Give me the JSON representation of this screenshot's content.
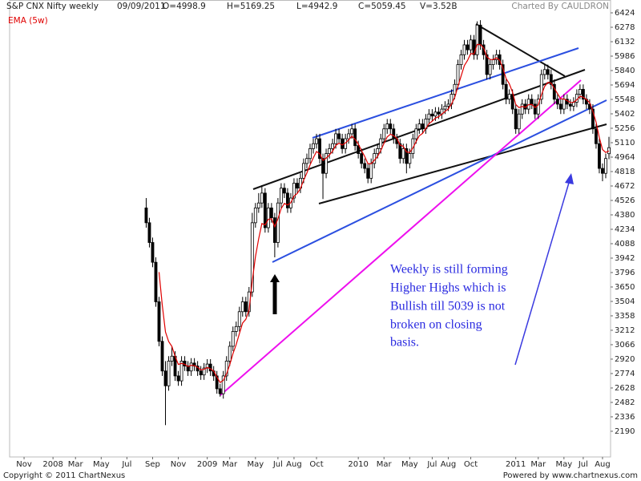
{
  "chart_data": {
    "type": "candlestick",
    "title": "S&P CNX Nifty weekly",
    "date": "09/09/2011",
    "quote": [
      "O=4998.9",
      "H=5169.25",
      "L=4942.9",
      "C=5059.45",
      "V=3.52B"
    ],
    "credit": "Charted By CAULDRON",
    "copyright": "Copyright © 2011 ChartNexus",
    "powered_by": "Powered by www.chartnexus.com",
    "annotation": [
      "Weekly is still forming",
      "Higher Highs which is",
      "Bullish till 5039 is not",
      "broken on closing",
      "basis."
    ],
    "ylim": [
      1930,
      6554
    ],
    "yticks": [
      6424,
      6278,
      6132,
      5986,
      5840,
      5694,
      5548,
      5402,
      5256,
      5110,
      4964,
      4818,
      4672,
      4526,
      4380,
      4234,
      4088,
      3942,
      3796,
      3650,
      3504,
      3358,
      3212,
      3066,
      2920,
      2774,
      2628,
      2482,
      2336,
      2190
    ],
    "categories": [
      null,
      null,
      null,
      null,
      "Nov",
      null,
      null,
      null,
      null,
      null,
      null,
      null,
      null,
      "2008",
      null,
      null,
      null,
      null,
      null,
      null,
      "Mar",
      null,
      null,
      null,
      null,
      null,
      null,
      null,
      "May",
      null,
      null,
      null,
      null,
      null,
      null,
      null,
      "Jul",
      null,
      null,
      null,
      null,
      null,
      null,
      null,
      "Sep",
      null,
      null,
      null,
      null,
      null,
      null,
      null,
      "Nov",
      null,
      null,
      null,
      null,
      null,
      null,
      null,
      null,
      "2009",
      null,
      null,
      null,
      null,
      null,
      null,
      "Mar",
      null,
      null,
      null,
      null,
      null,
      null,
      null,
      "May",
      null,
      null,
      null,
      null,
      null,
      null,
      "Jul",
      null,
      null,
      null,
      null,
      "Aug",
      null,
      null,
      null,
      null,
      null,
      null,
      "Oct",
      null,
      null,
      null,
      null,
      null,
      null,
      null,
      null,
      null,
      null,
      null,
      null,
      "2010",
      null,
      null,
      null,
      null,
      null,
      null,
      null,
      "Mar",
      null,
      null,
      null,
      null,
      null,
      null,
      null,
      "May",
      null,
      null,
      null,
      null,
      null,
      null,
      "Jul",
      null,
      null,
      null,
      null,
      "Aug",
      null,
      null,
      null,
      null,
      null,
      null,
      "Oct",
      null,
      null,
      null,
      null,
      null,
      null,
      null,
      null,
      null,
      null,
      null,
      null,
      null,
      "2011",
      null,
      null,
      null,
      null,
      null,
      null,
      "Mar",
      null,
      null,
      null,
      null,
      null,
      null,
      null,
      "May",
      null,
      null,
      null,
      null,
      null,
      "Jul",
      null,
      null,
      null,
      null,
      null,
      "Aug",
      null,
      null
    ],
    "up_color": "#ffffff",
    "down_color": "#000000",
    "values": [
      null,
      null,
      null,
      null,
      null,
      null,
      null,
      null,
      null,
      null,
      null,
      null,
      null,
      null,
      null,
      null,
      null,
      null,
      null,
      null,
      null,
      null,
      null,
      null,
      null,
      null,
      null,
      null,
      null,
      null,
      null,
      null,
      null,
      null,
      null,
      null,
      null,
      null,
      null,
      null,
      null,
      null,
      [
        4450,
        4550,
        4250,
        4300
      ],
      [
        4300,
        4350,
        4050,
        4100
      ],
      [
        4100,
        4150,
        3850,
        3900
      ],
      [
        3900,
        3950,
        3450,
        3500
      ],
      [
        3500,
        3550,
        3050,
        3100
      ],
      [
        3100,
        3150,
        2750,
        2800
      ],
      [
        2800,
        2900,
        2252,
        2650
      ],
      [
        2650,
        2950,
        2600,
        2900
      ],
      [
        2900,
        3050,
        2850,
        2950
      ],
      [
        2950,
        3000,
        2700,
        2750
      ],
      [
        2750,
        2800,
        2650,
        2700
      ],
      [
        2700,
        2950,
        2650,
        2900
      ],
      [
        2900,
        2950,
        2800,
        2850
      ],
      [
        2850,
        2900,
        2750,
        2800
      ],
      [
        2800,
        2930,
        2750,
        2880
      ],
      [
        2880,
        2930,
        2800,
        2850
      ],
      [
        2850,
        2900,
        2750,
        2800
      ],
      [
        2800,
        2850,
        2710,
        2760
      ],
      [
        2760,
        2880,
        2710,
        2830
      ],
      [
        2830,
        2920,
        2780,
        2870
      ],
      [
        2870,
        2920,
        2750,
        2800
      ],
      [
        2800,
        2850,
        2700,
        2750
      ],
      [
        2750,
        2800,
        2570,
        2620
      ],
      [
        2620,
        2670,
        2540,
        2570
      ],
      [
        2570,
        2800,
        2520,
        2750
      ],
      [
        2750,
        2950,
        2700,
        2900
      ],
      [
        2900,
        3100,
        2850,
        3050
      ],
      [
        3050,
        3250,
        3000,
        3200
      ],
      [
        3200,
        3300,
        3150,
        3250
      ],
      [
        3250,
        3450,
        3200,
        3400
      ],
      [
        3400,
        3550,
        3350,
        3500
      ],
      [
        3500,
        3550,
        3350,
        3400
      ],
      [
        3400,
        3650,
        3350,
        3600
      ],
      [
        3600,
        4400,
        3550,
        4300
      ],
      [
        4300,
        4500,
        4250,
        4450
      ],
      [
        4450,
        4600,
        4400,
        4500
      ],
      [
        4500,
        4680,
        4450,
        4600
      ],
      [
        4600,
        4650,
        4200,
        4250
      ],
      [
        4250,
        4500,
        4200,
        4450
      ],
      [
        4450,
        4500,
        4300,
        4350
      ],
      [
        4350,
        4400,
        3950,
        4100
      ],
      [
        4100,
        4550,
        4050,
        4500
      ],
      [
        4500,
        4700,
        4450,
        4650
      ],
      [
        4650,
        4700,
        4550,
        4600
      ],
      [
        4600,
        4650,
        4400,
        4450
      ],
      [
        4450,
        4600,
        4400,
        4550
      ],
      [
        4550,
        4750,
        4500,
        4700
      ],
      [
        4700,
        4750,
        4600,
        4650
      ],
      [
        4650,
        4800,
        4600,
        4750
      ],
      [
        4750,
        4950,
        4700,
        4900
      ],
      [
        4900,
        5000,
        4850,
        4950
      ],
      [
        4950,
        5100,
        4900,
        5050
      ],
      [
        5050,
        5150,
        5000,
        5100
      ],
      [
        5100,
        5200,
        5050,
        5150
      ],
      [
        5150,
        5200,
        4900,
        4950
      ],
      [
        4950,
        5000,
        4540,
        4800
      ],
      [
        4800,
        5050,
        4750,
        5000
      ],
      [
        5000,
        5100,
        4950,
        5050
      ],
      [
        5050,
        5150,
        5000,
        5100
      ],
      [
        5100,
        5250,
        5050,
        5200
      ],
      [
        5200,
        5250,
        5100,
        5150
      ],
      [
        5150,
        5200,
        5000,
        5050
      ],
      [
        5050,
        5200,
        5000,
        5150
      ],
      [
        5150,
        5250,
        5100,
        5200
      ],
      [
        5200,
        5300,
        5150,
        5250
      ],
      [
        5250,
        5300,
        5030,
        5080
      ],
      [
        5080,
        5130,
        4950,
        5000
      ],
      [
        5000,
        5050,
        4850,
        4900
      ],
      [
        4900,
        4950,
        4800,
        4850
      ],
      [
        4850,
        4900,
        4700,
        4750
      ],
      [
        4750,
        4950,
        4700,
        4900
      ],
      [
        4900,
        5050,
        4850,
        5000
      ],
      [
        5000,
        5100,
        4950,
        5050
      ],
      [
        5050,
        5200,
        5000,
        5150
      ],
      [
        5150,
        5300,
        5100,
        5250
      ],
      [
        5250,
        5350,
        5200,
        5300
      ],
      [
        5300,
        5350,
        5200,
        5250
      ],
      [
        5250,
        5300,
        5100,
        5150
      ],
      [
        5150,
        5200,
        5050,
        5100
      ],
      [
        5100,
        5150,
        4900,
        4950
      ],
      [
        4950,
        5100,
        4900,
        5050
      ],
      [
        5050,
        5100,
        4800,
        4900
      ],
      [
        4900,
        5050,
        4850,
        5000
      ],
      [
        5000,
        5200,
        4950,
        5150
      ],
      [
        5150,
        5300,
        5100,
        5250
      ],
      [
        5250,
        5350,
        5200,
        5300
      ],
      [
        5300,
        5350,
        5200,
        5250
      ],
      [
        5250,
        5400,
        5200,
        5350
      ],
      [
        5350,
        5450,
        5300,
        5400
      ],
      [
        5400,
        5450,
        5330,
        5380
      ],
      [
        5380,
        5470,
        5330,
        5420
      ],
      [
        5420,
        5470,
        5350,
        5400
      ],
      [
        5400,
        5500,
        5350,
        5450
      ],
      [
        5450,
        5530,
        5400,
        5480
      ],
      [
        5480,
        5550,
        5430,
        5500
      ],
      [
        5500,
        5650,
        5450,
        5600
      ],
      [
        5600,
        5750,
        5550,
        5700
      ],
      [
        5700,
        5950,
        5650,
        5900
      ],
      [
        5900,
        6050,
        5850,
        6000
      ],
      [
        6000,
        6150,
        5950,
        6100
      ],
      [
        6100,
        6150,
        6000,
        6050
      ],
      [
        6050,
        6200,
        6000,
        6150
      ],
      [
        6150,
        6200,
        5950,
        6000
      ],
      [
        6000,
        6338,
        5950,
        6300
      ],
      [
        6300,
        6350,
        6050,
        6100
      ],
      [
        6100,
        6150,
        5950,
        6000
      ],
      [
        6000,
        6050,
        5750,
        5800
      ],
      [
        5800,
        5950,
        5750,
        5900
      ],
      [
        5900,
        6000,
        5850,
        5950
      ],
      [
        5950,
        6050,
        5900,
        6000
      ],
      [
        6000,
        6050,
        5850,
        5900
      ],
      [
        5900,
        5950,
        5650,
        5700
      ],
      [
        5700,
        5750,
        5500,
        5550
      ],
      [
        5550,
        5650,
        5500,
        5600
      ],
      [
        5600,
        5650,
        5400,
        5450
      ],
      [
        5450,
        5500,
        5200,
        5250
      ],
      [
        5250,
        5450,
        5200,
        5400
      ],
      [
        5400,
        5550,
        5350,
        5500
      ],
      [
        5500,
        5550,
        5400,
        5450
      ],
      [
        5450,
        5600,
        5400,
        5550
      ],
      [
        5550,
        5600,
        5450,
        5500
      ],
      [
        5500,
        5550,
        5350,
        5400
      ],
      [
        5400,
        5600,
        5350,
        5550
      ],
      [
        5550,
        5850,
        5500,
        5800
      ],
      [
        5800,
        5900,
        5750,
        5850
      ],
      [
        5850,
        5900,
        5750,
        5800
      ],
      [
        5800,
        5850,
        5650,
        5700
      ],
      [
        5700,
        5750,
        5500,
        5550
      ],
      [
        5550,
        5600,
        5450,
        5500
      ],
      [
        5500,
        5550,
        5400,
        5450
      ],
      [
        5450,
        5600,
        5400,
        5550
      ],
      [
        5550,
        5600,
        5450,
        5500
      ],
      [
        5500,
        5550,
        5430,
        5480
      ],
      [
        5480,
        5570,
        5430,
        5520
      ],
      [
        5520,
        5650,
        5470,
        5600
      ],
      [
        5600,
        5700,
        5550,
        5650
      ],
      [
        5650,
        5700,
        5500,
        5550
      ],
      [
        5550,
        5600,
        5450,
        5500
      ],
      [
        5500,
        5550,
        5400,
        5450
      ],
      [
        5450,
        5500,
        5200,
        5250
      ],
      [
        5250,
        5300,
        5050,
        5100
      ],
      [
        5100,
        5150,
        4800,
        4850
      ],
      [
        4850,
        4900,
        4720,
        4800
      ],
      [
        4800,
        5000,
        4750,
        4950
      ],
      [
        4998.9,
        5169.25,
        4942.9,
        5059.45
      ]
    ],
    "series": [
      {
        "name": "EMA (5w)",
        "color": "#e00000",
        "values": [
          null,
          null,
          null,
          null,
          null,
          null,
          null,
          null,
          null,
          null,
          null,
          null,
          null,
          null,
          null,
          null,
          null,
          null,
          null,
          null,
          null,
          null,
          null,
          null,
          null,
          null,
          null,
          null,
          null,
          null,
          null,
          null,
          null,
          null,
          null,
          null,
          null,
          null,
          null,
          null,
          null,
          null,
          null,
          null,
          null,
          null,
          3800,
          3467,
          3195,
          3097,
          3048,
          2949,
          2866,
          2877,
          2868,
          2845,
          2857,
          2855,
          2837,
          2811,
          2817,
          2835,
          2823,
          2799,
          2739,
          2683,
          2705,
          2770,
          2863,
          2975,
          3067,
          3178,
          3285,
          3323,
          3415,
          3710,
          3957,
          4138,
          4292,
          4278,
          4335,
          4340,
          4260,
          4340,
          4443,
          4495,
          4480,
          4503,
          4569,
          4596,
          4647,
          4731,
          4804,
          4886,
          4957,
          5021,
          4997,
          4931,
          4954,
          4986,
          5024,
          5083,
          5105,
          5087,
          5108,
          5139,
          5176,
          5144,
          5096,
          5031,
          4971,
          4897,
          4898,
          4932,
          4971,
          5031,
          5104,
          5169,
          5196,
          5181,
          5154,
          5086,
          5074,
          5016,
          5011,
          5057,
          5121,
          5181,
          5204,
          5253,
          5302,
          5328,
          5359,
          5373,
          5399,
          5426,
          5451,
          5501,
          5567,
          5678,
          5785,
          5890,
          5943,
          6012,
          6008,
          6105,
          6103,
          6069,
          5979,
          5953,
          5952,
          5968,
          5945,
          5863,
          5759,
          5706,
          5621,
          5497,
          5465,
          5477,
          5468,
          5495,
          5497,
          5465,
          5493,
          5595,
          5680,
          5720,
          5713,
          5659,
          5606,
          5554,
          5553,
          5535,
          5517,
          5518,
          5545,
          5580,
          5570,
          5547,
          5515,
          5427,
          5318,
          5162,
          5041,
          5011,
          5027
        ]
      }
    ]
  }
}
